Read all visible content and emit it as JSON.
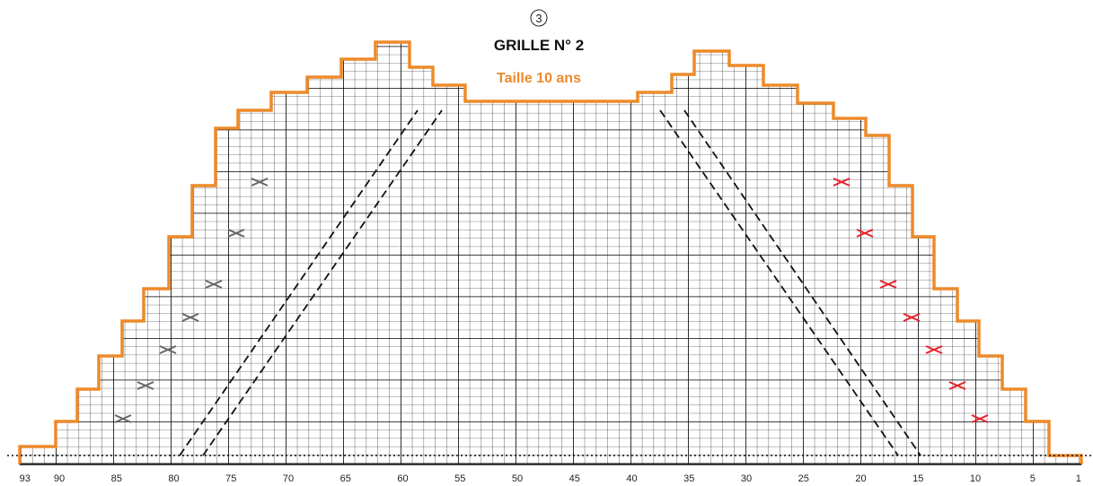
{
  "header": {
    "number": "3",
    "title": "GRILLE N° 2",
    "subtitle": "Taille 10 ans"
  },
  "axis_labels": [
    93,
    90,
    85,
    80,
    75,
    70,
    65,
    60,
    55,
    50,
    45,
    40,
    35,
    30,
    25,
    20,
    15,
    10,
    5,
    1
  ]
}
